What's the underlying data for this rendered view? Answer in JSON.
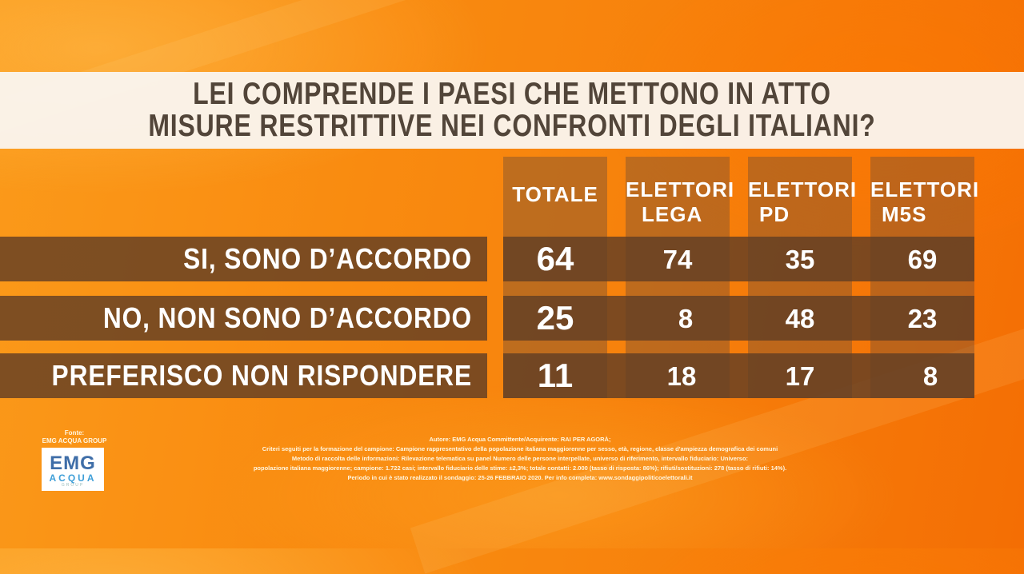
{
  "title": {
    "line1": "LEI COMPRENDE I PAESI CHE METTONO IN ATTO",
    "line2": "MISURE RESTRITTIVE NEI CONFRONTI DEGLI ITALIANI?"
  },
  "chart_data": {
    "type": "table",
    "columns": [
      {
        "line1": "TOTALE",
        "line2": ""
      },
      {
        "line1": "ELETTORI",
        "line2": "LEGA"
      },
      {
        "line1": "ELETTORI",
        "line2": "PD"
      },
      {
        "line1": "ELETTORI",
        "line2": "M5S"
      }
    ],
    "rows": [
      {
        "label": "SI, SONO D’ACCORDO",
        "values": [
          "64",
          "74",
          "35",
          "69"
        ]
      },
      {
        "label": "NO, NON SONO D’ACCORDO",
        "values": [
          "25",
          "8",
          "48",
          "23"
        ]
      },
      {
        "label": "PREFERISCO NON RISPONDERE",
        "values": [
          "11",
          "18",
          "17",
          "8"
        ]
      }
    ]
  },
  "source": {
    "label": "Fonte:",
    "name": "EMG ACQUA GROUP",
    "logo_top": "EMG",
    "logo_bottom": "ACQUA",
    "logo_sub": "GROUP"
  },
  "footer": {
    "line1": "Autore: EMG Acqua Committente/Acquirente: RAI PER AGORÀ;",
    "line2": "Criteri seguiti per la formazione del campione: Campione rappresentativo della popolazione italiana maggiorenne per sesso, età, regione, classe d'ampiezza demografica dei comuni",
    "line3": "Metodo di raccolta delle informazioni: Rilevazione telematica su panel Numero delle persone interpellate, universo di riferimento, intervallo fiduciario: Universo:",
    "line4": "popolazione italiana maggiorenne; campione: 1.722 casi; intervallo fiduciario delle stime: ±2,3%; totale contatti: 2.000 (tasso di risposta: 86%); rifiuti/sostituzioni: 278 (tasso di rifiuti: 14%).",
    "line5": "Periodo in cui è stato realizzato il sondaggio: 25-26 FEBBRAIO 2020. Per info completa: www.sondaggipoliticoelettorali.it"
  },
  "colors": {
    "background": "#f7820c",
    "band": "#623e24",
    "title_text": "#524539"
  }
}
